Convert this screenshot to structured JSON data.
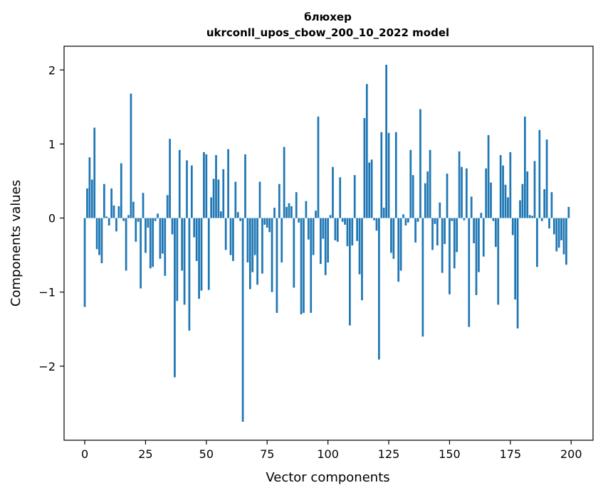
{
  "chart_data": {
    "type": "bar",
    "title": "блюхер",
    "subtitle": "ukrconll_upos_cbow_200_10_2022 model",
    "xlabel": "Vector components",
    "ylabel": "Components values",
    "xlim": [
      -8.5,
      209
    ],
    "ylim": [
      -3.0,
      2.32
    ],
    "xticks": [
      0,
      25,
      50,
      75,
      100,
      125,
      150,
      175,
      200
    ],
    "xtick_labels": [
      "0",
      "25",
      "50",
      "75",
      "100",
      "125",
      "150",
      "175",
      "200"
    ],
    "yticks": [
      -2,
      -1,
      0,
      1,
      2
    ],
    "ytick_labels": [
      "−2",
      "−1",
      "0",
      "1",
      "2"
    ],
    "grid": false,
    "bar_color": "#1f77b4",
    "x": [
      0,
      1,
      2,
      3,
      4,
      5,
      6,
      7,
      8,
      9,
      10,
      11,
      12,
      13,
      14,
      15,
      16,
      17,
      18,
      19,
      20,
      21,
      22,
      23,
      24,
      25,
      26,
      27,
      28,
      29,
      30,
      31,
      32,
      33,
      34,
      35,
      36,
      37,
      38,
      39,
      40,
      41,
      42,
      43,
      44,
      45,
      46,
      47,
      48,
      49,
      50,
      51,
      52,
      53,
      54,
      55,
      56,
      57,
      58,
      59,
      60,
      61,
      62,
      63,
      64,
      65,
      66,
      67,
      68,
      69,
      70,
      71,
      72,
      73,
      74,
      75,
      76,
      77,
      78,
      79,
      80,
      81,
      82,
      83,
      84,
      85,
      86,
      87,
      88,
      89,
      90,
      91,
      92,
      93,
      94,
      95,
      96,
      97,
      98,
      99,
      100,
      101,
      102,
      103,
      104,
      105,
      106,
      107,
      108,
      109,
      110,
      111,
      112,
      113,
      114,
      115,
      116,
      117,
      118,
      119,
      120,
      121,
      122,
      123,
      124,
      125,
      126,
      127,
      128,
      129,
      130,
      131,
      132,
      133,
      134,
      135,
      136,
      137,
      138,
      139,
      140,
      141,
      142,
      143,
      144,
      145,
      146,
      147,
      148,
      149,
      150,
      151,
      152,
      153,
      154,
      155,
      156,
      157,
      158,
      159,
      160,
      161,
      162,
      163,
      164,
      165,
      166,
      167,
      168,
      169,
      170,
      171,
      172,
      173,
      174,
      175,
      176,
      177,
      178,
      179,
      180,
      181,
      182,
      183,
      184,
      185,
      186,
      187,
      188,
      189,
      190,
      191,
      192,
      193,
      194,
      195,
      196,
      197,
      198,
      199
    ],
    "values": [
      -1.2,
      0.4,
      0.82,
      0.52,
      1.22,
      -0.42,
      -0.5,
      -0.61,
      0.46,
      0.02,
      -0.1,
      0.4,
      0.17,
      -0.18,
      0.16,
      0.74,
      -0.04,
      -0.71,
      0.04,
      1.68,
      0.22,
      -0.32,
      -0.05,
      -0.95,
      0.34,
      -0.47,
      -0.13,
      -0.68,
      -0.66,
      -0.04,
      0.06,
      -0.55,
      -0.48,
      -0.78,
      0.31,
      1.07,
      -0.22,
      -2.15,
      -1.12,
      0.92,
      -0.71,
      -1.17,
      0.78,
      -1.52,
      0.71,
      -0.26,
      -0.58,
      -1.09,
      -0.98,
      0.89,
      0.86,
      -0.97,
      0.28,
      0.53,
      0.85,
      0.52,
      0.09,
      0.66,
      -0.43,
      0.93,
      -0.5,
      -0.58,
      0.49,
      0.08,
      -0.04,
      -2.75,
      0.86,
      -0.6,
      -0.96,
      -0.73,
      -0.5,
      -0.9,
      0.49,
      -0.75,
      -0.09,
      -0.13,
      -0.19,
      -1.0,
      0.14,
      -1.28,
      0.46,
      -0.6,
      0.96,
      0.15,
      0.2,
      0.16,
      -0.94,
      0.35,
      -0.06,
      -1.3,
      -1.28,
      0.23,
      -0.29,
      -1.28,
      -0.5,
      0.1,
      1.37,
      -0.62,
      -0.28,
      -0.77,
      -0.6,
      0.04,
      0.69,
      -0.3,
      -0.32,
      0.55,
      -0.05,
      -0.09,
      -0.38,
      -1.45,
      -0.37,
      0.58,
      -0.31,
      -0.76,
      -1.11,
      1.35,
      1.81,
      0.75,
      0.79,
      -0.03,
      -0.17,
      -1.91,
      1.16,
      0.14,
      2.07,
      1.15,
      -0.47,
      -0.55,
      1.16,
      -0.86,
      -0.71,
      0.05,
      -0.1,
      -0.06,
      0.92,
      0.58,
      -0.33,
      -0.05,
      1.47,
      -1.6,
      0.47,
      0.63,
      0.92,
      -0.43,
      -0.08,
      -0.37,
      0.21,
      -0.74,
      -0.35,
      0.6,
      -1.03,
      -0.04,
      -0.68,
      -0.46,
      0.9,
      0.69,
      -0.03,
      0.67,
      -1.47,
      0.29,
      -0.34,
      -1.04,
      -0.73,
      0.07,
      -0.52,
      0.67,
      1.12,
      0.48,
      -0.04,
      -0.39,
      -1.17,
      0.85,
      0.71,
      0.45,
      0.28,
      0.89,
      -0.23,
      -1.1,
      -1.49,
      0.24,
      0.46,
      1.37,
      0.63,
      0.04,
      0.03,
      0.77,
      -0.66,
      1.19,
      -0.04,
      0.39,
      1.06,
      -0.14,
      0.35,
      -0.22,
      -0.45,
      -0.4,
      -0.3,
      -0.49,
      -0.63,
      0.15
    ]
  }
}
